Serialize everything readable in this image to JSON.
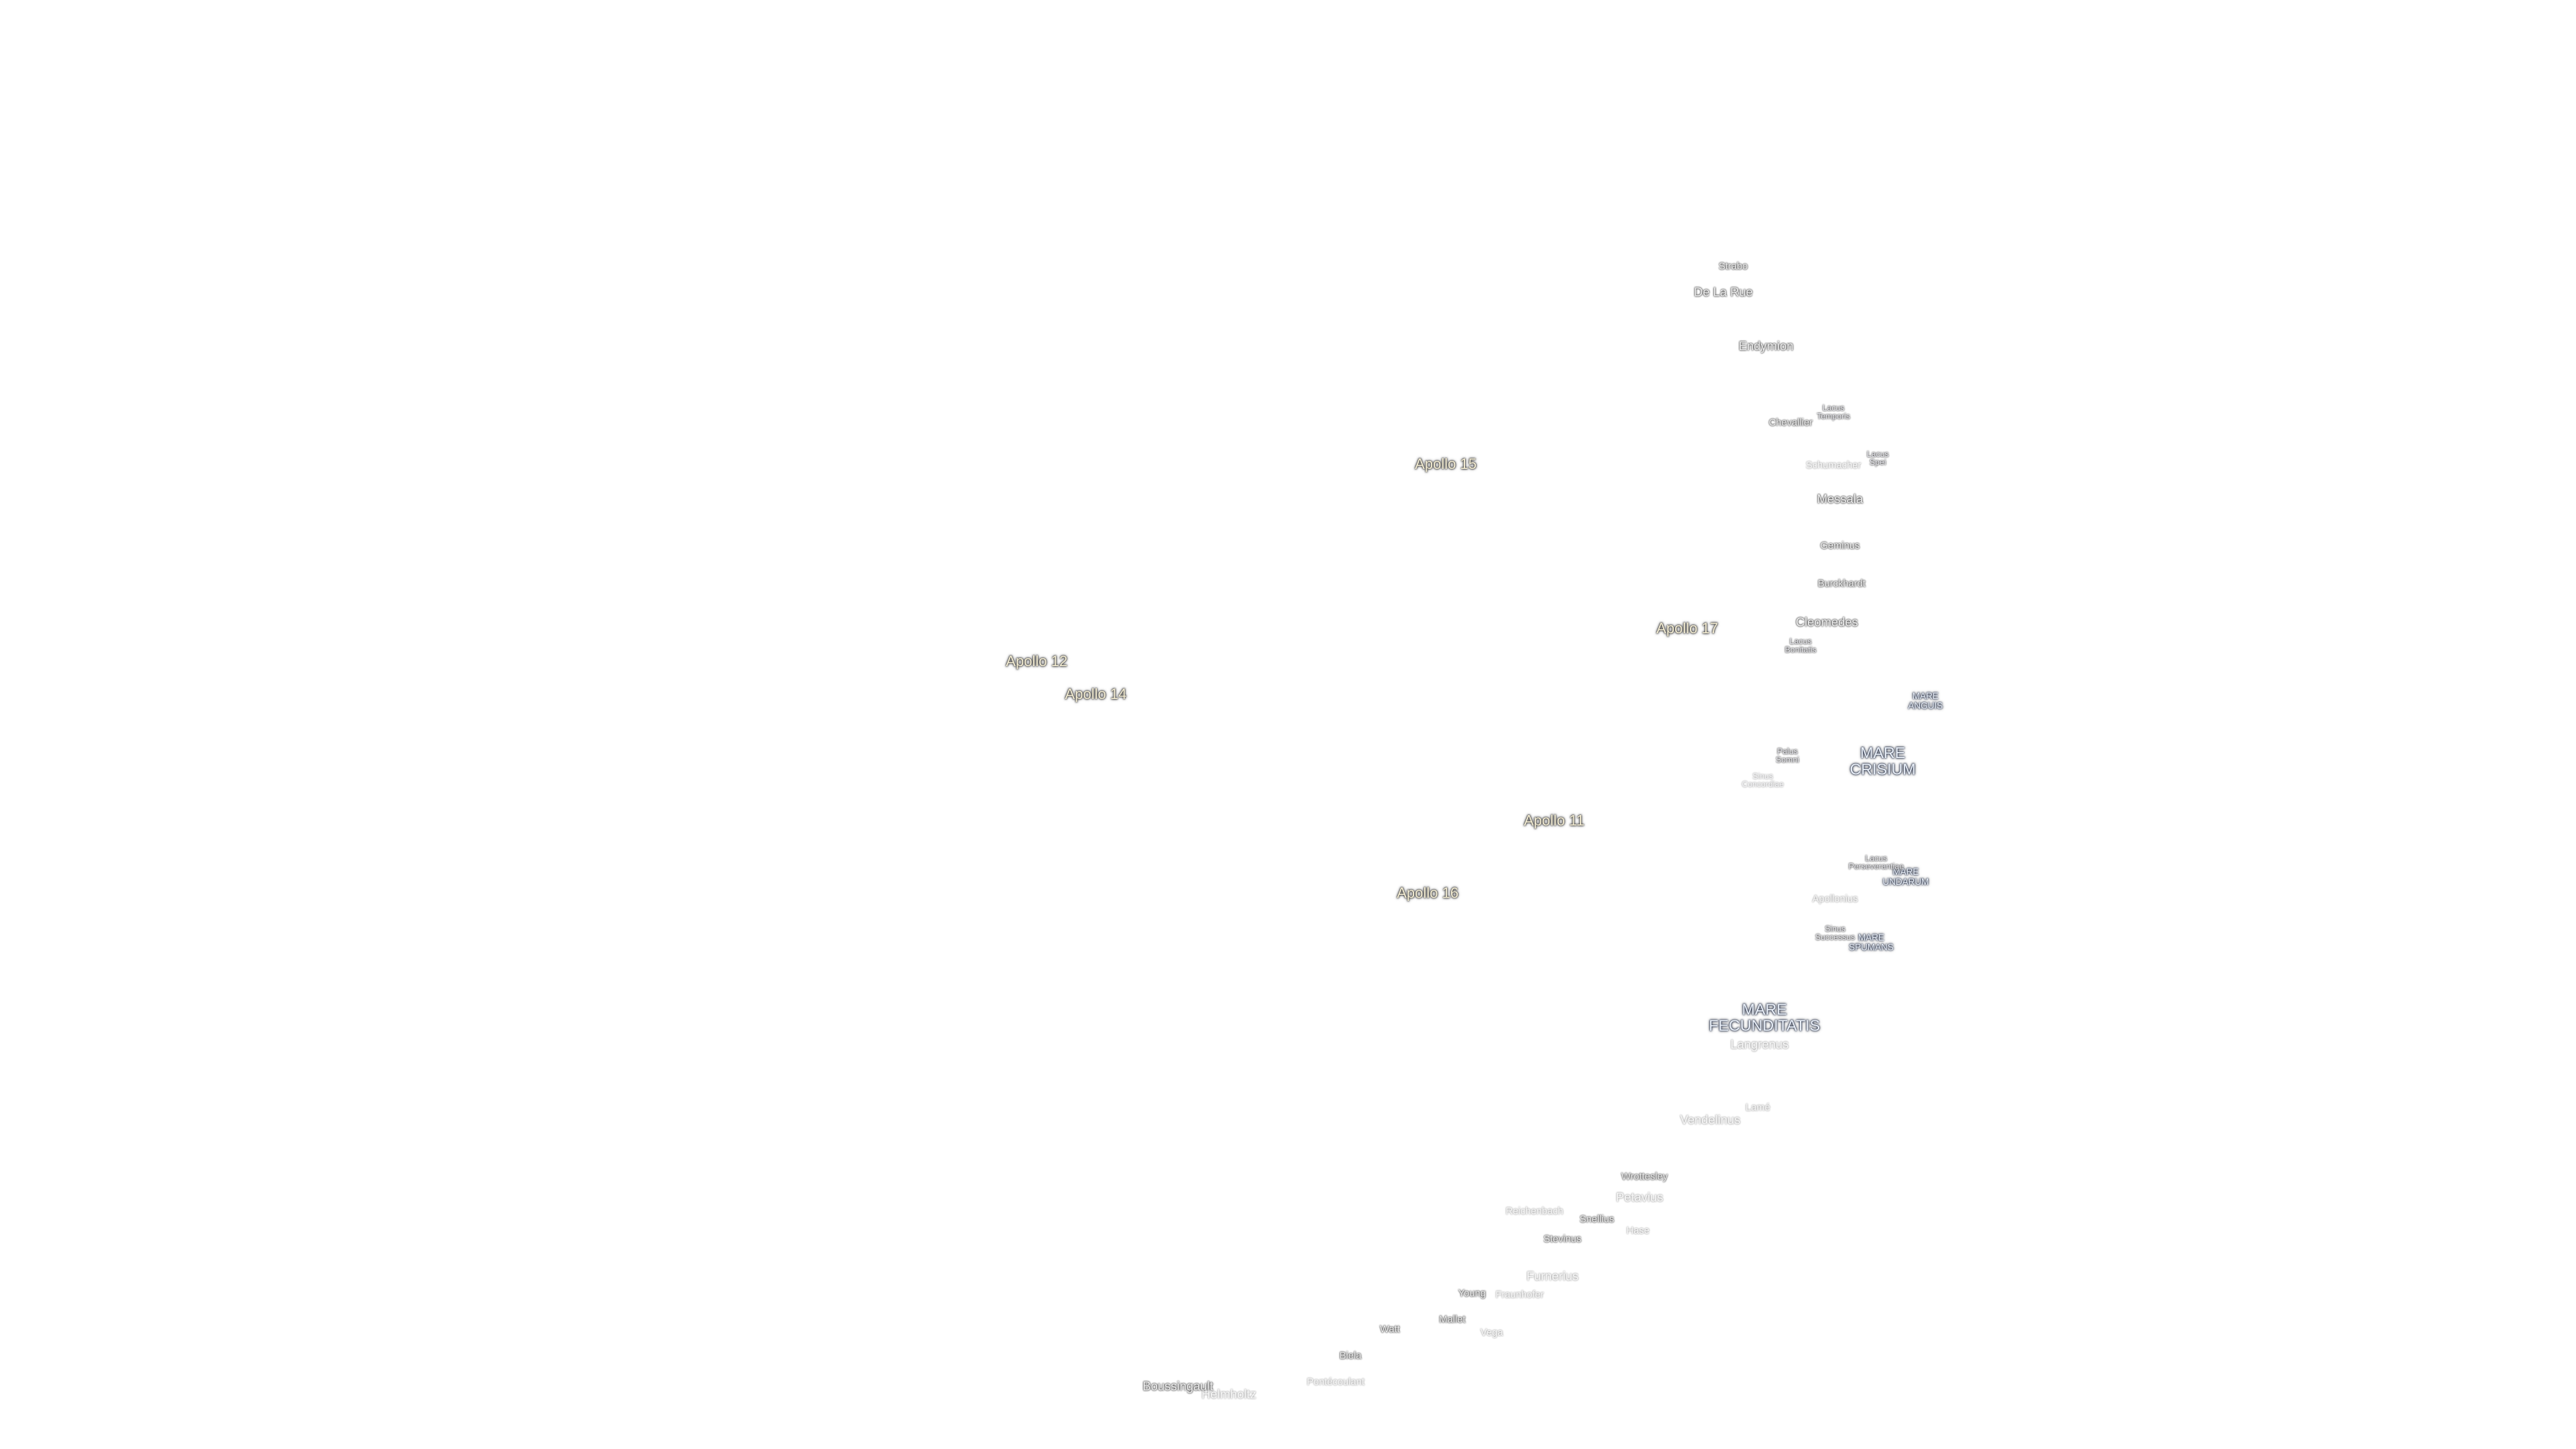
{
  "apollo": [
    "Apollo 15",
    "Apollo 17",
    "Apollo 12",
    "Apollo 14",
    "Apollo 11",
    "Apollo 16"
  ],
  "maria": [
    "MARE ANGUIS",
    "MARE CRISIUM",
    "MARE UNDARUM",
    "MARE SPUMANS",
    "MARE FECUNDITATIS"
  ],
  "features": [
    "Lacus Temporis",
    "Lacus Spei",
    "Lacus Bonitatis",
    "Palus Somni",
    "Sinus Concordiae",
    "Lacus Perseverantiae",
    "Sinus Successus"
  ],
  "craters": [
    "Strabo",
    "De La Rue",
    "Endymion",
    "Chevallier",
    "Schumacher",
    "Messala",
    "Geminus",
    "Burckhardt",
    "Cleomedes",
    "Apollonius",
    "Langrenus",
    "Lamé",
    "Vendelinus",
    "Wrottesley",
    "Petavius",
    "Reichenbach",
    "Snellius",
    "Hase",
    "Stevinus",
    "Furnerius",
    "Young",
    "Fraunhofer",
    "Mallet",
    "Vega",
    "Watt",
    "Biela",
    "Boussingault",
    "Helmholtz",
    "Pontécoulant"
  ]
}
